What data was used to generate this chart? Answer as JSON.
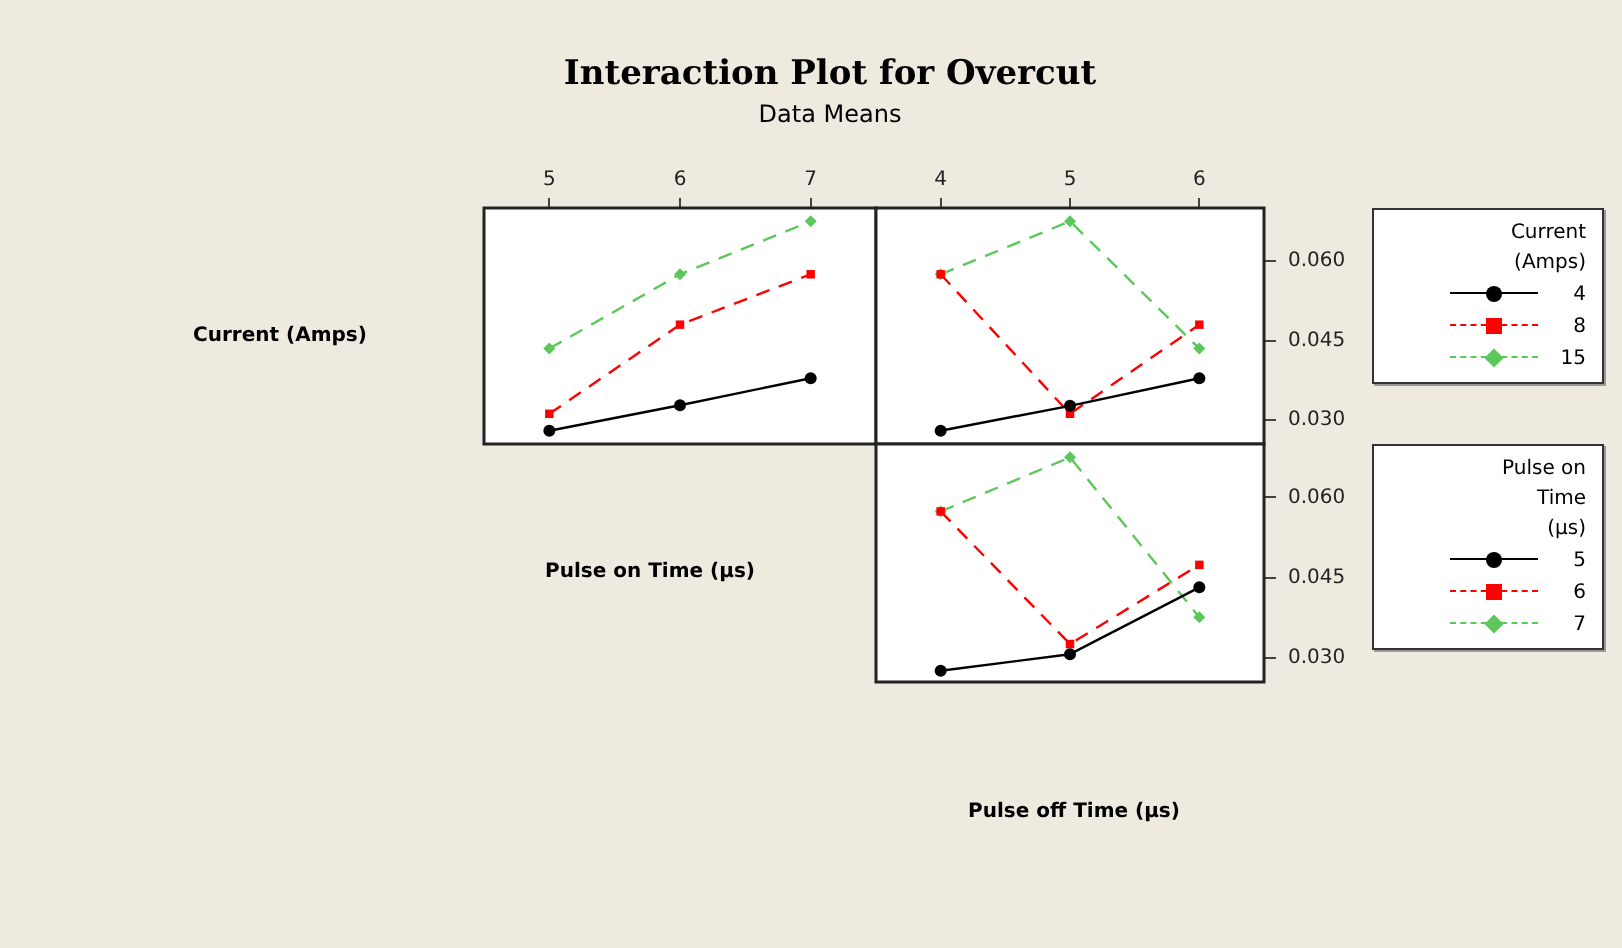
{
  "chart_data": [
    {
      "type": "line",
      "title": "Interaction Plot for Overcut",
      "subtitle": "Data Means",
      "ylabel": "Current (Amps)",
      "x": [
        5,
        6,
        7
      ],
      "xlim": [
        4.5,
        7.5
      ],
      "xticks": [
        5,
        6,
        7
      ],
      "ylim": [
        0.0255,
        0.07
      ],
      "tick_labels": "x",
      "legend": false,
      "series": [
        {
          "color": "#000000",
          "marker": "circle",
          "line_style": "solid",
          "values": [
            0.028,
            0.0328,
            0.0379
          ]
        },
        {
          "color": "#ff0000",
          "marker": "square",
          "line_style": "dashed",
          "values": [
            0.0312,
            0.048,
            0.0575
          ]
        },
        {
          "color": "#5cc85c",
          "marker": "diamond",
          "line_style": "dashed",
          "values": [
            0.0435,
            0.0575,
            0.0675
          ]
        }
      ]
    },
    {
      "type": "line",
      "x": [
        4,
        5,
        6
      ],
      "xlim": [
        3.5,
        6.5
      ],
      "xticks": [
        4,
        5,
        6
      ],
      "ylim": [
        0.0255,
        0.07
      ],
      "yticks": [
        {
          "value": 0.03,
          "label": "0.030"
        },
        {
          "value": 0.045,
          "label": "0.045"
        },
        {
          "value": 0.06,
          "label": "0.060"
        }
      ],
      "legend": "right",
      "legend_title": "Current (Amps)",
      "series": [
        {
          "name": "4",
          "color": "#000000",
          "marker": "circle",
          "line_style": "solid",
          "values": [
            0.028,
            0.0327,
            0.0379
          ]
        },
        {
          "name": "8",
          "color": "#ff0000",
          "marker": "square",
          "line_style": "dashed",
          "values": [
            0.0575,
            0.0312,
            0.048
          ]
        },
        {
          "name": "15",
          "color": "#5cc85c",
          "marker": "diamond",
          "line_style": "dashed",
          "values": [
            0.0575,
            0.0675,
            0.0435
          ]
        }
      ]
    },
    {
      "type": "line",
      "ylabel": "Pulse on Time (μs)",
      "xlabel": "Pulse off Time (μs)",
      "x": [
        4,
        5,
        6
      ],
      "xlim": [
        3.5,
        6.5
      ],
      "xticks": [
        4,
        5,
        6
      ],
      "ylim": [
        0.0255,
        0.07
      ],
      "yticks": [
        {
          "value": 0.03,
          "label": "0.030"
        },
        {
          "value": 0.045,
          "label": "0.045"
        },
        {
          "value": 0.06,
          "label": "0.060"
        }
      ],
      "tick_labels": "y",
      "legend": "right",
      "legend_title": "Pulse on Time (μs)",
      "series": [
        {
          "name": "5",
          "color": "#000000",
          "marker": "circle",
          "line_style": "solid",
          "values": [
            0.0276,
            0.0307,
            0.0432
          ]
        },
        {
          "name": "6",
          "color": "#ff0000",
          "marker": "square",
          "line_style": "dashed",
          "values": [
            0.0574,
            0.0326,
            0.0474
          ]
        },
        {
          "name": "7",
          "color": "#5cc85c",
          "marker": "diamond",
          "line_style": "dashed",
          "values": [
            0.0574,
            0.0675,
            0.0376
          ]
        }
      ]
    }
  ]
}
